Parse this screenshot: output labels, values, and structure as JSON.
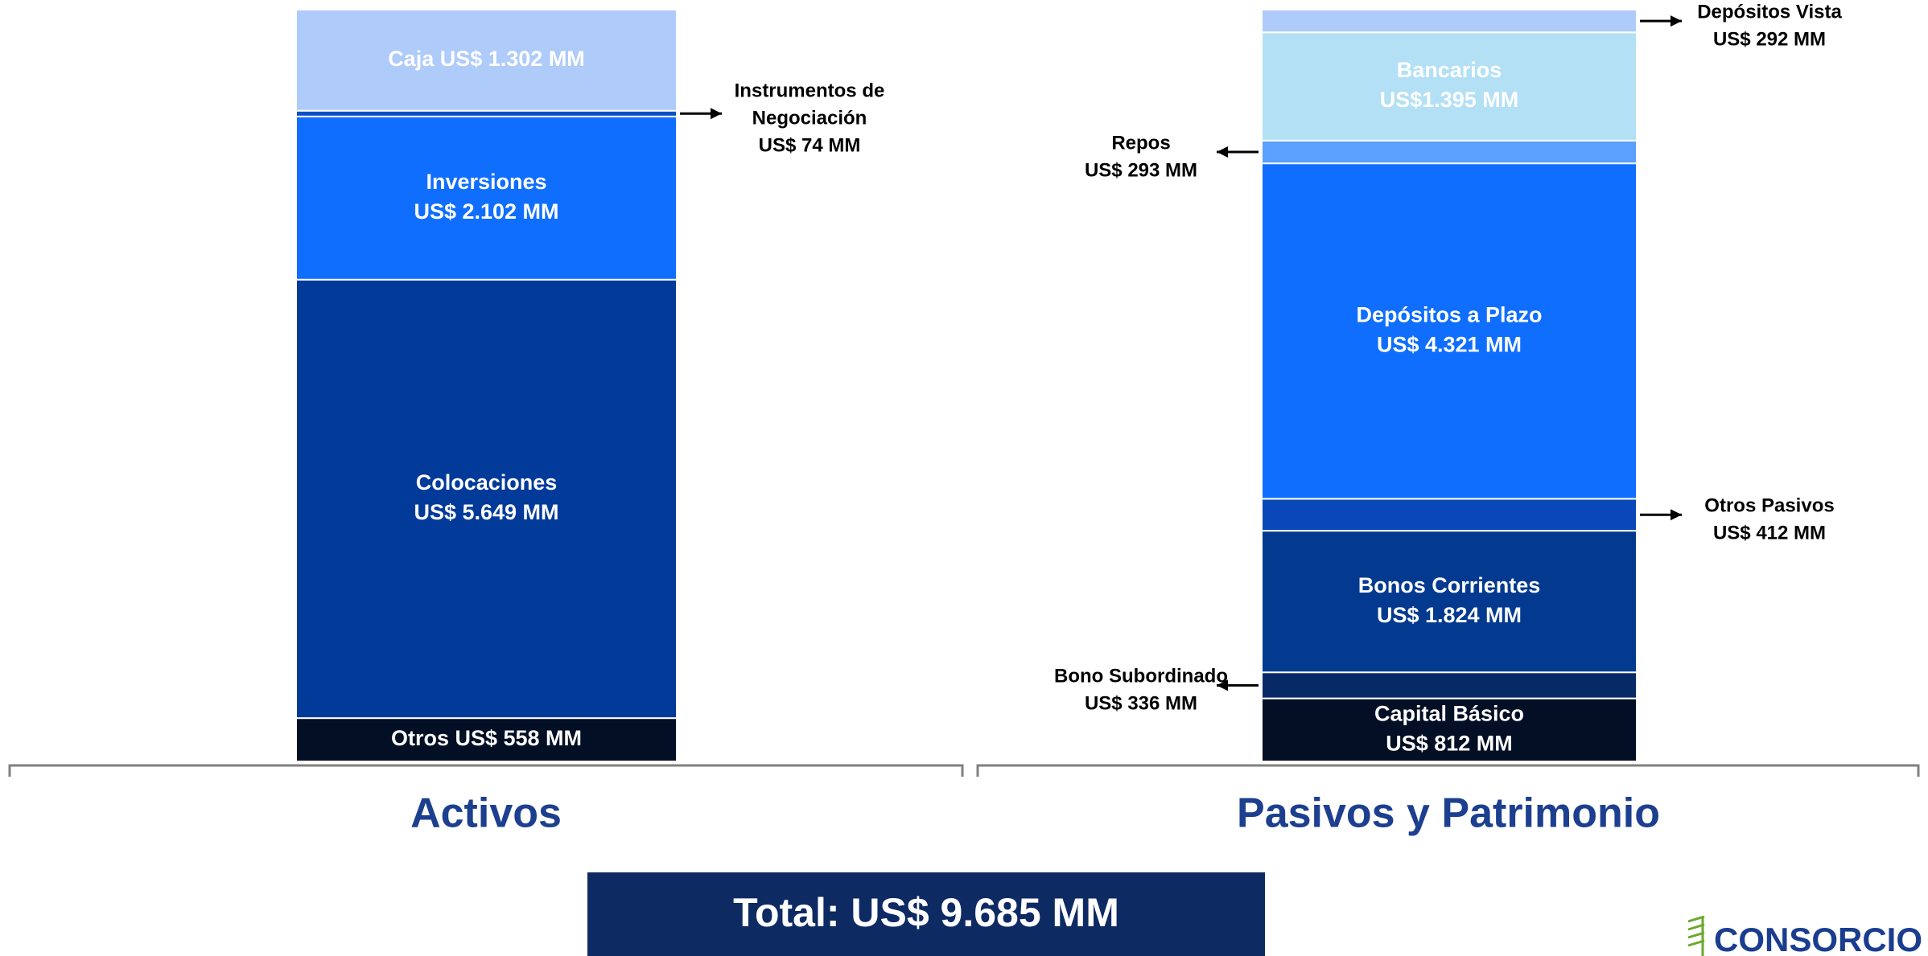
{
  "chart_data": {
    "type": "stacked-bar",
    "categories": [
      "Activos",
      "Pasivos y Patrimonio"
    ],
    "total": 9685,
    "total_label": "Total: US$ 9.685 MM",
    "bars": [
      {
        "segments": [
          {
            "value": 558,
            "label": [
              "Otros US$ 558 MM"
            ],
            "color": "#030f24"
          },
          {
            "value": 5649,
            "label": [
              "Colocaciones",
              "US$ 5.649 MM"
            ],
            "color": "#023a9a"
          },
          {
            "value": 2102,
            "label": [
              "Inversiones",
              "US$ 2.102  MM"
            ],
            "color": "#0f6efd"
          },
          {
            "value": 74,
            "label": [
              "Instrumentos de",
              "Negociación",
              "US$ 74 MM"
            ],
            "color": "#0a4fc4"
          },
          {
            "value": 1302,
            "label": [
              "Caja US$ 1.302  MM"
            ],
            "color": "#aecbfa"
          }
        ]
      },
      {
        "segments": [
          {
            "value": 812,
            "label": [
              "Capital Básico",
              "US$ 812 MM"
            ],
            "color": "#030f24"
          },
          {
            "value": 336,
            "label": [
              "Bono Subordinado",
              "US$ 336 MM"
            ],
            "color": "#052a66"
          },
          {
            "value": 1824,
            "label": [
              "Bonos Corrientes",
              "US$ 1.824 MM"
            ],
            "color": "#033a8f"
          },
          {
            "value": 412,
            "label": [
              "Otros Pasivos",
              "US$ 412 MM"
            ],
            "color": "#0a47b8"
          },
          {
            "value": 4321,
            "label": [
              "Depósitos a Plazo",
              "US$ 4.321 MM"
            ],
            "color": "#0f6efd"
          },
          {
            "value": 293,
            "label": [
              "Repos",
              "US$ 293 MM"
            ],
            "color": "#5aa0ff"
          },
          {
            "value": 1395,
            "label": [
              "Bancarios",
              "US$1.395 MM"
            ],
            "color": "#b3e0f5"
          },
          {
            "value": 292,
            "label": [
              "Depósitos Vista",
              "US$ 292 MM"
            ],
            "color": "#aecbfa"
          }
        ]
      }
    ]
  },
  "logo": "CONSORCIO"
}
